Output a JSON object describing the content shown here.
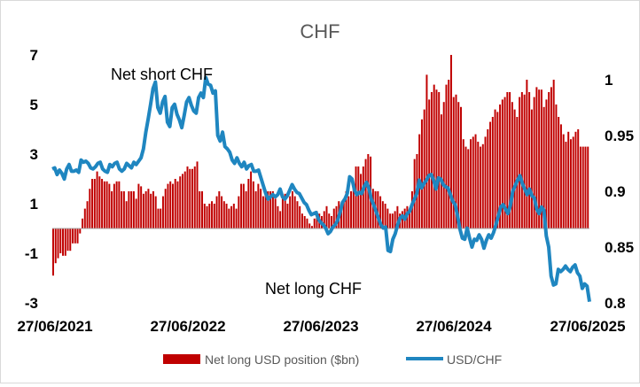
{
  "chart_data": {
    "type": "bar",
    "title": "CHF",
    "x_tick_labels": [
      "27/06/2021",
      "27/06/2022",
      "27/06/2023",
      "27/06/2024",
      "27/06/2025"
    ],
    "y_left_ticks": [
      7,
      5,
      3,
      1,
      -1,
      -3
    ],
    "y_left_range": [
      -3,
      7
    ],
    "y_right_ticks": [
      1,
      0.95,
      0.9,
      0.85,
      0.8
    ],
    "y_right_range": [
      0.8,
      1.0
    ],
    "annotations": [
      "Net short CHF",
      "Net long CHF"
    ],
    "legend_position": "bottom",
    "grid": false,
    "series": [
      {
        "name": "Net long USD position ($bn)",
        "type": "bar",
        "axis": "left",
        "color": "#c00000",
        "values": [
          -1.9,
          -1.4,
          -1.2,
          -1.0,
          -1.1,
          -1.1,
          -0.9,
          -0.9,
          -0.6,
          -0.6,
          -0.6,
          -0.2,
          0.4,
          0.8,
          1.1,
          1.6,
          2.0,
          2.0,
          2.3,
          2.1,
          2.0,
          1.9,
          1.9,
          1.8,
          1.5,
          1.8,
          1.9,
          1.9,
          1.5,
          1.5,
          1.1,
          1.5,
          1.5,
          1.5,
          1.2,
          1.8,
          1.7,
          1.4,
          1.5,
          1.6,
          1.4,
          1.5,
          1.3,
          0.8,
          0.8,
          1.3,
          1.6,
          1.8,
          1.9,
          1.8,
          2.0,
          1.9,
          2.1,
          2.2,
          2.3,
          2.5,
          2.4,
          2.4,
          2.5,
          2.7,
          1.5,
          1.5,
          1.0,
          0.9,
          1.0,
          1.1,
          1.0,
          1.3,
          1.5,
          1.3,
          1.1,
          1.0,
          0.8,
          0.9,
          1.0,
          0.8,
          1.3,
          1.8,
          1.8,
          1.5,
          2.0,
          2.3,
          1.9,
          1.5,
          1.8,
          1.6,
          1.3,
          1.5,
          1.5,
          1.5,
          1.5,
          1.2,
          0.9,
          0.7,
          1.2,
          1.4,
          1.0,
          1.3,
          1.5,
          1.3,
          1.1,
          0.9,
          0.6,
          0.5,
          0.4,
          0.2,
          0.1,
          0.4,
          0.7,
          0.6,
          0.5,
          0.7,
          0.9,
          0.6,
          0.5,
          0.8,
          0.9,
          1.1,
          1.0,
          1.2,
          1.5,
          1.3,
          1.5,
          1.8,
          2.5,
          2.5,
          2.2,
          2.5,
          2.8,
          3.0,
          2.9,
          1.6,
          1.5,
          1.5,
          1.3,
          1.1,
          1.0,
          0.8,
          0.6,
          0.6,
          0.7,
          0.9,
          0.6,
          0.7,
          0.8,
          0.9,
          0.8,
          1.5,
          2.8,
          3.0,
          3.8,
          4.4,
          4.8,
          6.2,
          5.2,
          5.5,
          5.8,
          5.6,
          5.5,
          4.6,
          5.1,
          5.8,
          6.0,
          7.0,
          5.3,
          5.4,
          5.1,
          4.9,
          3.6,
          3.3,
          3.2,
          3.6,
          3.7,
          3.8,
          3.5,
          3.3,
          3.4,
          3.7,
          4.0,
          4.3,
          4.5,
          4.8,
          4.7,
          5.0,
          5.2,
          5.3,
          5.5,
          5.5,
          5.1,
          4.8,
          4.5,
          5.3,
          5.5,
          5.4,
          6.0,
          5.5,
          4.8,
          5.3,
          5.7,
          5.6,
          5.6,
          4.9,
          5.2,
          5.5,
          5.7,
          6.0,
          5.0,
          4.5,
          4.2,
          3.8,
          3.5,
          3.9,
          3.6,
          3.7,
          3.9,
          4.0,
          3.3,
          3.3,
          3.3,
          3.3
        ]
      },
      {
        "name": "USD/CHF",
        "type": "line",
        "axis": "right",
        "color": "#1f86c0",
        "values": [
          0.92,
          0.921,
          0.915,
          0.919,
          0.916,
          0.911,
          0.92,
          0.924,
          0.918,
          0.918,
          0.919,
          0.917,
          0.928,
          0.926,
          0.927,
          0.925,
          0.921,
          0.92,
          0.922,
          0.925,
          0.926,
          0.92,
          0.918,
          0.917,
          0.924,
          0.922,
          0.925,
          0.926,
          0.92,
          0.918,
          0.92,
          0.925,
          0.923,
          0.921,
          0.926,
          0.924,
          0.927,
          0.93,
          0.938,
          0.953,
          0.965,
          0.978,
          0.992,
          0.998,
          0.975,
          0.97,
          0.98,
          0.985,
          0.962,
          0.958,
          0.975,
          0.978,
          0.969,
          0.964,
          0.957,
          0.968,
          0.98,
          0.984,
          0.977,
          0.972,
          0.97,
          0.984,
          0.988,
          0.984,
          1.002,
          0.996,
          0.995,
          0.988,
          0.99,
          0.95,
          0.945,
          0.953,
          0.94,
          0.938,
          0.935,
          0.928,
          0.925,
          0.93,
          0.925,
          0.922,
          0.926,
          0.92,
          0.923,
          0.924,
          0.918,
          0.918,
          0.919,
          0.912,
          0.905,
          0.898,
          0.893,
          0.895,
          0.897,
          0.895,
          0.897,
          0.902,
          0.895,
          0.893,
          0.896,
          0.901,
          0.906,
          0.902,
          0.899,
          0.898,
          0.894,
          0.89,
          0.888,
          0.883,
          0.879,
          0.88,
          0.881,
          0.875,
          0.872,
          0.87,
          0.867,
          0.862,
          0.864,
          0.868,
          0.87,
          0.874,
          0.881,
          0.89,
          0.893,
          0.898,
          0.913,
          0.911,
          0.901,
          0.897,
          0.899,
          0.898,
          0.904,
          0.908,
          0.903,
          0.893,
          0.888,
          0.882,
          0.876,
          0.87,
          0.867,
          0.868,
          0.847,
          0.846,
          0.857,
          0.862,
          0.87,
          0.876,
          0.878,
          0.875,
          0.88,
          0.882,
          0.888,
          0.893,
          0.898,
          0.91,
          0.903,
          0.907,
          0.91,
          0.914,
          0.915,
          0.91,
          0.902,
          0.912,
          0.911,
          0.906,
          0.904,
          0.903,
          0.897,
          0.891,
          0.888,
          0.878,
          0.866,
          0.858,
          0.857,
          0.867,
          0.858,
          0.85,
          0.857,
          0.856,
          0.861,
          0.857,
          0.849,
          0.856,
          0.861,
          0.858,
          0.863,
          0.87,
          0.878,
          0.886,
          0.888,
          0.884,
          0.88,
          0.887,
          0.9,
          0.905,
          0.91,
          0.914,
          0.907,
          0.902,
          0.897,
          0.902,
          0.896,
          0.894,
          0.884,
          0.88,
          0.886,
          0.883,
          0.86,
          0.85,
          0.824,
          0.816,
          0.817,
          0.83,
          0.828,
          0.83,
          0.833,
          0.83,
          0.828,
          0.832,
          0.834,
          0.827,
          0.824,
          0.813,
          0.817,
          0.815,
          0.801
        ]
      }
    ]
  }
}
